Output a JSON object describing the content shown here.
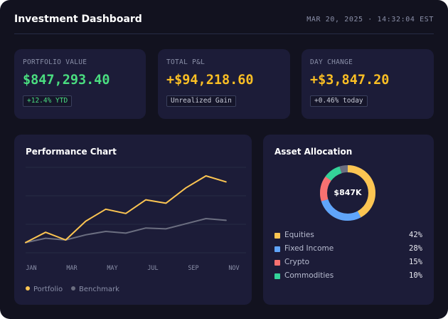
{
  "header": {
    "title": "Investment Dashboard",
    "timestamp": "MAR 20, 2025 · 14:32:04 EST"
  },
  "kpis": [
    {
      "label": "PORTFOLIO VALUE",
      "value": "$847,293.40",
      "badge": "+12.4% YTD",
      "color": "#4ade80",
      "badge_color": "#4ade80"
    },
    {
      "label": "TOTAL P&L",
      "value": "+$94,218.60",
      "badge": "Unrealized Gain",
      "color": "#fbbf24",
      "badge_color": "#c8cbd8"
    },
    {
      "label": "DAY CHANGE",
      "value": "+$3,847.20",
      "badge": "+0.46% today",
      "color": "#fbbf24",
      "badge_color": "#c8cbd8"
    }
  ],
  "performance": {
    "title": "Performance Chart",
    "legend": {
      "portfolio": "Portfolio",
      "benchmark": "Benchmark"
    }
  },
  "allocation": {
    "title": "Asset Allocation",
    "center_label": "$847K"
  },
  "chart_data": [
    {
      "type": "line",
      "title": "Performance Chart",
      "x_ticks": [
        "JAN",
        "MAR",
        "MAY",
        "JUL",
        "SEP",
        "NOV"
      ],
      "x_index_range": [
        0,
        11
      ],
      "ylim": [
        0,
        100
      ],
      "grid": true,
      "legend_position": "bottom-left",
      "series": [
        {
          "name": "Portfolio",
          "color": "#fcc552",
          "values": [
            12,
            24,
            15,
            37,
            51,
            46,
            62,
            58,
            76,
            90,
            83
          ]
        },
        {
          "name": "Benchmark",
          "color": "#6b6e80",
          "values": [
            12,
            17,
            15,
            21,
            25,
            23,
            29,
            28,
            34,
            40,
            38
          ]
        }
      ]
    },
    {
      "type": "pie",
      "title": "Asset Allocation",
      "donut": true,
      "slices": [
        {
          "label": "Equities",
          "value": 42,
          "display": "42%",
          "color": "#fcc552"
        },
        {
          "label": "Fixed Income",
          "value": 28,
          "display": "28%",
          "color": "#60a5fa"
        },
        {
          "label": "Crypto",
          "value": 15,
          "display": "15%",
          "color": "#f87171"
        },
        {
          "label": "Commodities",
          "value": 10,
          "display": "10%",
          "color": "#34d399"
        }
      ],
      "remainder_color": "#6b6e80"
    }
  ]
}
